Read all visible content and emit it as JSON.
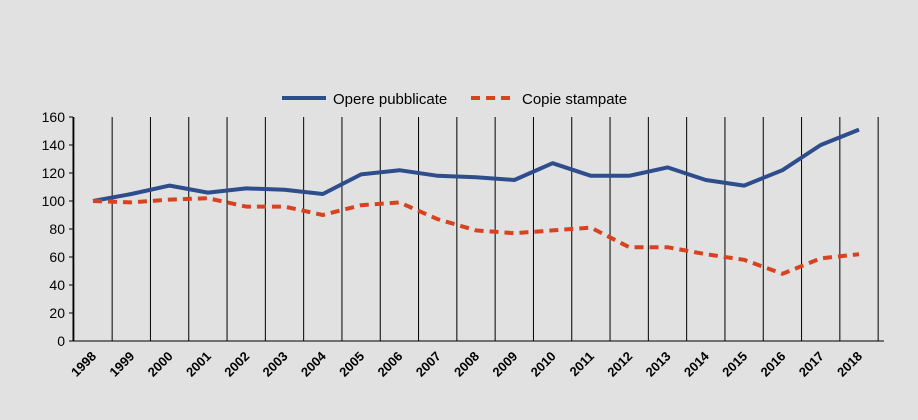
{
  "chart_data": {
    "type": "line",
    "title": "",
    "xlabel": "",
    "ylabel": "",
    "categories": [
      "1998",
      "1999",
      "2000",
      "2001",
      "2002",
      "2003",
      "2004",
      "2005",
      "2006",
      "2007",
      "2008",
      "2009",
      "2010",
      "2011",
      "2012",
      "2013",
      "2014",
      "2015",
      "2016",
      "2017",
      "2018"
    ],
    "ylim": [
      0,
      160
    ],
    "yticks": [
      0,
      20,
      40,
      60,
      80,
      100,
      120,
      140,
      160
    ],
    "grid": "vertical",
    "legend_position": "top-center",
    "series": [
      {
        "name": "Opere pubblicate",
        "color": "#2e4d8c",
        "style": "solid",
        "values": [
          100,
          105,
          111,
          106,
          109,
          108,
          105,
          119,
          122,
          118,
          117,
          115,
          127,
          118,
          118,
          124,
          115,
          111,
          122,
          140,
          151
        ]
      },
      {
        "name": "Copie stampate",
        "color": "#d9421f",
        "style": "dashed",
        "values": [
          100,
          99,
          101,
          102,
          96,
          96,
          90,
          97,
          99,
          87,
          79,
          77,
          79,
          81,
          67,
          67,
          62,
          58,
          48,
          59,
          62
        ]
      }
    ]
  }
}
